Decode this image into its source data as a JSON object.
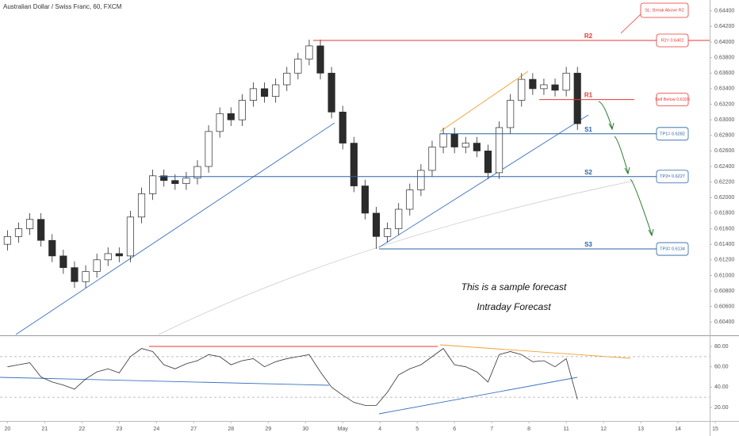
{
  "chart_data": {
    "type": "candlestick",
    "title": "Australian Dollar / Swiss Franc, 60, FXCM",
    "x": [
      0.0,
      0.3,
      0.6,
      0.9,
      1.2,
      1.5,
      1.8,
      2.1,
      2.4,
      2.7,
      3.0,
      3.3,
      3.6,
      3.9,
      4.2,
      4.5,
      4.8,
      5.1,
      5.4,
      5.7,
      6.0,
      6.3,
      6.6,
      6.9,
      7.2,
      7.5,
      7.8,
      8.1,
      8.4,
      8.7,
      9.0,
      9.3,
      9.6,
      9.9,
      10.2,
      10.5,
      10.8,
      11.1,
      11.4,
      11.7,
      12.0,
      12.3,
      12.6,
      12.9,
      13.2,
      13.5,
      13.8,
      14.1,
      14.4,
      14.7,
      15.0,
      15.3
    ],
    "open": [
      0.614,
      0.615,
      0.616,
      0.6172,
      0.6145,
      0.6125,
      0.611,
      0.6092,
      0.6105,
      0.612,
      0.6128,
      0.6125,
      0.6175,
      0.6205,
      0.6228,
      0.6222,
      0.6218,
      0.6225,
      0.624,
      0.6285,
      0.6308,
      0.63,
      0.6325,
      0.634,
      0.633,
      0.6345,
      0.636,
      0.6378,
      0.6395,
      0.636,
      0.631,
      0.627,
      0.6215,
      0.618,
      0.615,
      0.616,
      0.6185,
      0.621,
      0.6235,
      0.6265,
      0.6282,
      0.6265,
      0.627,
      0.626,
      0.6232,
      0.629,
      0.6325,
      0.6352,
      0.634,
      0.6345,
      0.6338,
      0.636
    ],
    "high": [
      0.6158,
      0.6168,
      0.618,
      0.618,
      0.6153,
      0.6133,
      0.6118,
      0.6113,
      0.6128,
      0.6136,
      0.6136,
      0.6183,
      0.6213,
      0.6236,
      0.6236,
      0.623,
      0.6233,
      0.6248,
      0.6293,
      0.6316,
      0.6316,
      0.6333,
      0.6348,
      0.6348,
      0.6353,
      0.6368,
      0.6386,
      0.6403,
      0.6403,
      0.6368,
      0.6318,
      0.6278,
      0.6223,
      0.6188,
      0.6168,
      0.6193,
      0.6218,
      0.6243,
      0.6273,
      0.629,
      0.629,
      0.6278,
      0.6278,
      0.6268,
      0.6298,
      0.6333,
      0.636,
      0.636,
      0.6353,
      0.6353,
      0.6368,
      0.6368
    ],
    "low": [
      0.6132,
      0.6142,
      0.6152,
      0.6137,
      0.6117,
      0.6102,
      0.6084,
      0.6084,
      0.6097,
      0.6112,
      0.6117,
      0.6117,
      0.6167,
      0.6197,
      0.6214,
      0.621,
      0.621,
      0.6217,
      0.6232,
      0.6277,
      0.6292,
      0.6292,
      0.6317,
      0.6322,
      0.6322,
      0.6337,
      0.6352,
      0.637,
      0.6352,
      0.6302,
      0.6262,
      0.6207,
      0.6172,
      0.6134,
      0.6142,
      0.6152,
      0.6177,
      0.6202,
      0.6227,
      0.6257,
      0.6257,
      0.6257,
      0.6252,
      0.6224,
      0.6224,
      0.6282,
      0.6317,
      0.6332,
      0.6332,
      0.633,
      0.633,
      0.6287
    ],
    "close": [
      0.615,
      0.616,
      0.6172,
      0.6145,
      0.6125,
      0.611,
      0.6092,
      0.6105,
      0.612,
      0.6128,
      0.6125,
      0.6175,
      0.6205,
      0.6228,
      0.6222,
      0.6218,
      0.6225,
      0.624,
      0.6285,
      0.6308,
      0.63,
      0.6325,
      0.634,
      0.633,
      0.6345,
      0.636,
      0.6378,
      0.6395,
      0.636,
      0.631,
      0.627,
      0.6215,
      0.618,
      0.615,
      0.616,
      0.6185,
      0.621,
      0.6235,
      0.6265,
      0.6282,
      0.6265,
      0.627,
      0.626,
      0.6232,
      0.629,
      0.6325,
      0.6352,
      0.634,
      0.6345,
      0.6338,
      0.636,
      0.6295
    ],
    "up_color": "#ffffff",
    "down_color": "#2b2b2b",
    "wick_color": "#2b2b2b",
    "xlim": [
      -0.2,
      18.85
    ],
    "xticks": [
      {
        "value": 0,
        "label": "20"
      },
      {
        "value": 1,
        "label": "21"
      },
      {
        "value": 2,
        "label": "22"
      },
      {
        "value": 3,
        "label": "23"
      },
      {
        "value": 4,
        "label": "24"
      },
      {
        "value": 5,
        "label": "27"
      },
      {
        "value": 6,
        "label": "28"
      },
      {
        "value": 7,
        "label": "29"
      },
      {
        "value": 8,
        "label": "30"
      },
      {
        "value": 9,
        "label": "May"
      },
      {
        "value": 10,
        "label": "4"
      },
      {
        "value": 11,
        "label": "5"
      },
      {
        "value": 12,
        "label": "6"
      },
      {
        "value": 13,
        "label": "7"
      },
      {
        "value": 14,
        "label": "8"
      },
      {
        "value": 15,
        "label": "11"
      },
      {
        "value": 16,
        "label": "12"
      },
      {
        "value": 17,
        "label": "13"
      },
      {
        "value": 18,
        "label": "14"
      },
      {
        "value": 19,
        "label": "15"
      }
    ],
    "ylim": [
      0.6024,
      0.6454
    ],
    "yticks": [
      {
        "value": 0.604,
        "label": "0.60400"
      },
      {
        "value": 0.606,
        "label": "0.60600"
      },
      {
        "value": 0.608,
        "label": "0.60800"
      },
      {
        "value": 0.61,
        "label": "0.61000"
      },
      {
        "value": 0.612,
        "label": "0.61200"
      },
      {
        "value": 0.614,
        "label": "0.61400"
      },
      {
        "value": 0.616,
        "label": "0.61600"
      },
      {
        "value": 0.618,
        "label": "0.61800"
      },
      {
        "value": 0.62,
        "label": "0.62000"
      },
      {
        "value": 0.622,
        "label": "0.62200"
      },
      {
        "value": 0.624,
        "label": "0.62400"
      },
      {
        "value": 0.626,
        "label": "0.62600"
      },
      {
        "value": 0.628,
        "label": "0.62800"
      },
      {
        "value": 0.63,
        "label": "0.63000"
      },
      {
        "value": 0.632,
        "label": "0.63200"
      },
      {
        "value": 0.634,
        "label": "0.63400"
      },
      {
        "value": 0.636,
        "label": "0.63600"
      },
      {
        "value": 0.638,
        "label": "0.63800"
      },
      {
        "value": 0.64,
        "label": "0.64000"
      },
      {
        "value": 0.642,
        "label": "0.64200"
      },
      {
        "value": 0.644,
        "label": "0.64400"
      }
    ],
    "levels": [
      {
        "name": "R2",
        "value": 0.6402,
        "color": "#e53935",
        "callout": "R2= 0.6402"
      },
      {
        "name": "R1",
        "value": 0.6326,
        "color": "#e53935",
        "callout": "Sell Below 0.6326"
      },
      {
        "name": "S1",
        "value": 0.6282,
        "color": "#2962a8",
        "callout": "TP1= 0.6282"
      },
      {
        "name": "S2",
        "value": 0.6227,
        "color": "#2962a8",
        "callout": "TP2= 0.6227"
      },
      {
        "name": "S3",
        "value": 0.6134,
        "color": "#2962a8",
        "callout": "TP3= 0.6134"
      }
    ],
    "stop_note": "SL: Break Above R2",
    "annotations": [
      "This is a sample forecast",
      "Intraday Forecast"
    ],
    "rsi": {
      "values": [
        60,
        62,
        64,
        50,
        45,
        42,
        38,
        48,
        55,
        58,
        54,
        70,
        78,
        75,
        62,
        58,
        63,
        66,
        72,
        70,
        62,
        66,
        68,
        60,
        65,
        68,
        70,
        72,
        55,
        40,
        32,
        25,
        22,
        22,
        35,
        52,
        58,
        62,
        70,
        78,
        62,
        60,
        55,
        45,
        72,
        75,
        72,
        65,
        66,
        60,
        68,
        28
      ],
      "color": "#333333",
      "ylim": [
        7.5,
        89.4
      ],
      "yticks": [
        {
          "value": 20,
          "label": "20.00"
        },
        {
          "value": 40,
          "label": "40.00"
        },
        {
          "value": 60,
          "label": "60.00"
        },
        {
          "value": 80,
          "label": "80.00"
        }
      ],
      "levels": [
        70,
        30
      ]
    }
  }
}
